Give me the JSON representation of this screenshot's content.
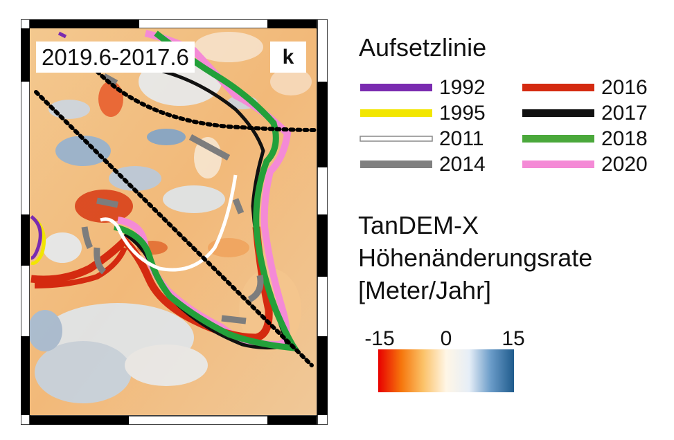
{
  "map": {
    "period_label": "2019.6-2017.6",
    "panel_letter": "k"
  },
  "legend": {
    "title": "Aufsetzlinie",
    "items": [
      {
        "year": "1992",
        "color": "#7a2bb0",
        "style": "solid"
      },
      {
        "year": "1995",
        "color": "#f2e600",
        "style": "solid"
      },
      {
        "year": "2011",
        "color": "#ffffff",
        "style": "double-outline"
      },
      {
        "year": "2014",
        "color": "#808080",
        "style": "solid"
      },
      {
        "year": "2016",
        "color": "#d42a10",
        "style": "solid"
      },
      {
        "year": "2017",
        "color": "#111111",
        "style": "solid"
      },
      {
        "year": "2018",
        "color": "#4aa83b",
        "style": "solid"
      },
      {
        "year": "2020",
        "color": "#f48ad6",
        "style": "solid"
      }
    ]
  },
  "colorbar": {
    "title_lines": [
      "TanDEM-X",
      "Höhenänderungsrate",
      "[Meter/Jahr]"
    ],
    "ticks": [
      "-15",
      "0",
      "15"
    ],
    "min": -15,
    "max": 15,
    "colors": [
      "#e80000",
      "#f6760c",
      "#fbc167",
      "#fff6e6",
      "#e6eef7",
      "#6a9bc8",
      "#1f5b8c"
    ]
  }
}
